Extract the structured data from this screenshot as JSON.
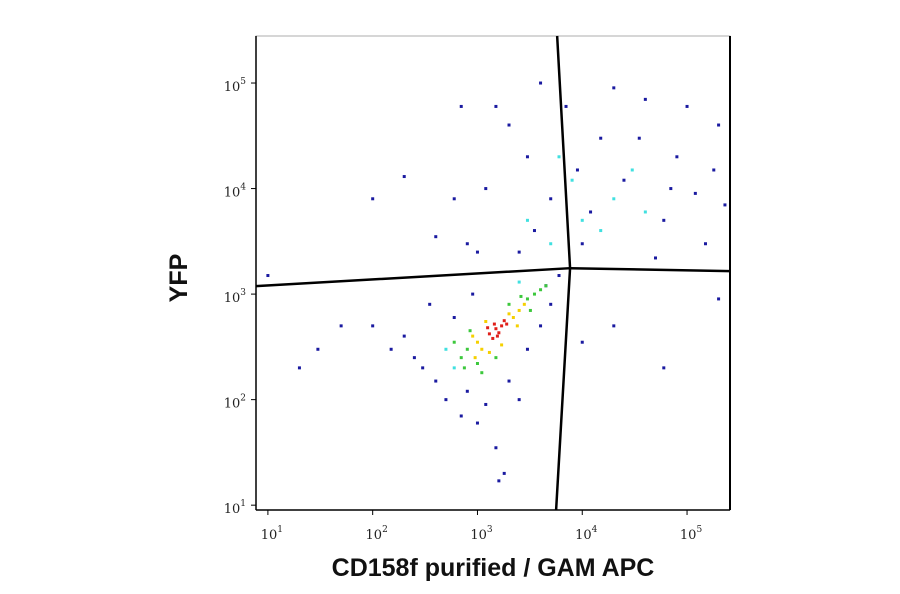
{
  "chart_data": {
    "type": "scatter",
    "x_label": "CD158f purified / GAM APC",
    "y_label": "YFP",
    "x_log": true,
    "y_log": true,
    "xlim": [
      7.7,
      257000
    ],
    "ylim": [
      9,
      279000
    ],
    "xticks": [
      {
        "value": 10,
        "label": "10",
        "sup": "1"
      },
      {
        "value": 100,
        "label": "10",
        "sup": "2"
      },
      {
        "value": 1000,
        "label": "10",
        "sup": "3"
      },
      {
        "value": 10000,
        "label": "10",
        "sup": "4"
      },
      {
        "value": 100000,
        "label": "10",
        "sup": "5"
      }
    ],
    "yticks": [
      {
        "value": 10,
        "label": "10",
        "sup": "1"
      },
      {
        "value": 100,
        "label": "10",
        "sup": "2"
      },
      {
        "value": 1000,
        "label": "10",
        "sup": "3"
      },
      {
        "value": 10000,
        "label": "10",
        "sup": "4"
      },
      {
        "value": 100000,
        "label": "10",
        "sup": "5"
      }
    ],
    "gates": [
      {
        "x": [
          7.7,
          7650,
          257000
        ],
        "y": [
          1190,
          1760,
          1650
        ]
      },
      {
        "x": [
          5760,
          7650,
          5630
        ],
        "y": [
          279000,
          1760,
          9
        ]
      }
    ],
    "series": [
      {
        "color": "#1a1aa0",
        "x": [
          800,
          1200,
          2000,
          3000,
          5000,
          7000,
          10000,
          15000,
          25000,
          40000,
          60000,
          80000,
          120000,
          200000,
          150000,
          1000,
          1500,
          4000,
          20000,
          50000,
          100000,
          600,
          2500,
          9000,
          35000,
          70000,
          180000,
          3500,
          12000,
          230000,
          400,
          700,
          300,
          400,
          200,
          500,
          800,
          1200,
          2000,
          3000,
          4000,
          5000,
          600,
          350,
          1000,
          1500,
          2500,
          700,
          250,
          6000,
          4500,
          100,
          150,
          1800,
          1600,
          900,
          20,
          50,
          10,
          30,
          200000,
          60000,
          20000,
          100,
          200,
          10000
        ],
        "y": [
          3000,
          10000,
          40000,
          20000,
          8000,
          60000,
          3000,
          30000,
          12000,
          70000,
          5000,
          20000,
          9000,
          40000,
          3000,
          2500,
          60000,
          100000,
          90000,
          2200,
          60000,
          8000,
          2500,
          15000,
          30000,
          10000,
          15000,
          4000,
          6000,
          7000,
          3500,
          60000,
          200,
          150,
          400,
          100,
          120,
          90,
          150,
          300,
          500,
          800,
          600,
          800,
          60,
          35,
          100,
          70,
          250,
          1500,
          1200,
          500,
          300,
          20,
          17,
          1000,
          200,
          500,
          1500,
          300,
          900,
          200,
          500,
          8000,
          13000,
          350
        ]
      },
      {
        "color": "#40e0e0",
        "x": [
          20000,
          10000,
          5000,
          30000,
          3000,
          15000,
          8000,
          2500,
          600,
          500,
          40000,
          6000
        ],
        "y": [
          8000,
          5000,
          3000,
          15000,
          5000,
          4000,
          12000,
          1300,
          200,
          300,
          6000,
          20000
        ]
      },
      {
        "color": "#3cc83c",
        "x": [
          800,
          3000,
          700,
          3500,
          1000,
          2600,
          850,
          4000,
          1500,
          2000,
          600,
          3200,
          1100,
          4500,
          750
        ],
        "y": [
          300,
          900,
          250,
          1000,
          220,
          950,
          450,
          1100,
          250,
          800,
          350,
          700,
          180,
          1200,
          200
        ]
      },
      {
        "color": "#f5d000",
        "x": [
          1000,
          2200,
          1100,
          2500,
          900,
          2000,
          1300,
          2800,
          1200,
          1700,
          2400,
          950
        ],
        "y": [
          350,
          600,
          300,
          700,
          400,
          650,
          280,
          800,
          550,
          330,
          500,
          250
        ]
      },
      {
        "color": "#e0201a",
        "x": [
          1300,
          1500,
          1700,
          1400,
          1600,
          1800,
          1250,
          1550,
          1900,
          1450
        ],
        "y": [
          420,
          470,
          500,
          380,
          430,
          560,
          480,
          400,
          520,
          520
        ]
      }
    ]
  }
}
